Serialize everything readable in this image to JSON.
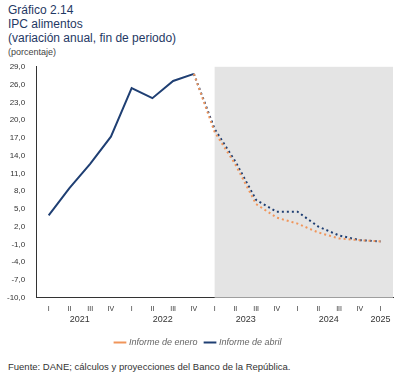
{
  "chart_data": {
    "type": "line",
    "title": "Gráfico 2.14",
    "subtitle": [
      "IPC alimentos",
      "(variación anual, fin de periodo)"
    ],
    "y_label": "(porcentaje)",
    "source": "Fuente: DANE; cálculos y proyecciones del Banco de la República.",
    "categories": [
      "I",
      "II",
      "III",
      "IV",
      "I",
      "II",
      "III",
      "IV",
      "I",
      "II",
      "III",
      "IV",
      "I",
      "II",
      "III",
      "IV",
      "I"
    ],
    "category_groups": [
      {
        "name": "2021",
        "count": 4
      },
      {
        "name": "2022",
        "count": 4
      },
      {
        "name": "2023",
        "count": 4
      },
      {
        "name": "2024",
        "count": 4
      },
      {
        "name": "2025",
        "count": 1
      }
    ],
    "series": [
      {
        "name": "Informe de enero",
        "color": "#f0955a",
        "line_style": "dotted",
        "values": [
          null,
          null,
          null,
          null,
          null,
          null,
          null,
          27.8,
          18.0,
          12.5,
          5.8,
          3.5,
          2.5,
          1.0,
          0.0,
          -0.3,
          -0.5
        ]
      },
      {
        "name": "Informe de abril",
        "color": "#1f3f73",
        "values": [
          3.9,
          8.5,
          12.6,
          17.2,
          25.4,
          23.7,
          26.6,
          27.8,
          18.5,
          13.0,
          6.5,
          4.5,
          4.5,
          2.0,
          0.5,
          -0.3,
          -0.5
        ]
      }
    ],
    "ylim": [
      -10,
      29
    ],
    "yticks": [
      {
        "value": 29,
        "label": "29,0"
      },
      {
        "value": 26,
        "label": "26,0"
      },
      {
        "value": 23,
        "label": "23,0"
      },
      {
        "value": 20,
        "label": "20,0"
      },
      {
        "value": 17,
        "label": "17,0"
      },
      {
        "value": 14,
        "label": "14,0"
      },
      {
        "value": 11,
        "label": "11,0"
      },
      {
        "value": 8,
        "label": "8,0"
      },
      {
        "value": 5,
        "label": "5,0"
      },
      {
        "value": 2,
        "label": "2,0"
      },
      {
        "value": -1,
        "label": "-1,0"
      },
      {
        "value": -4,
        "label": "-4,0"
      },
      {
        "value": -7,
        "label": "-7,0"
      },
      {
        "value": -10,
        "label": "-10,0"
      }
    ],
    "grid": false,
    "legend": "bottom"
  }
}
